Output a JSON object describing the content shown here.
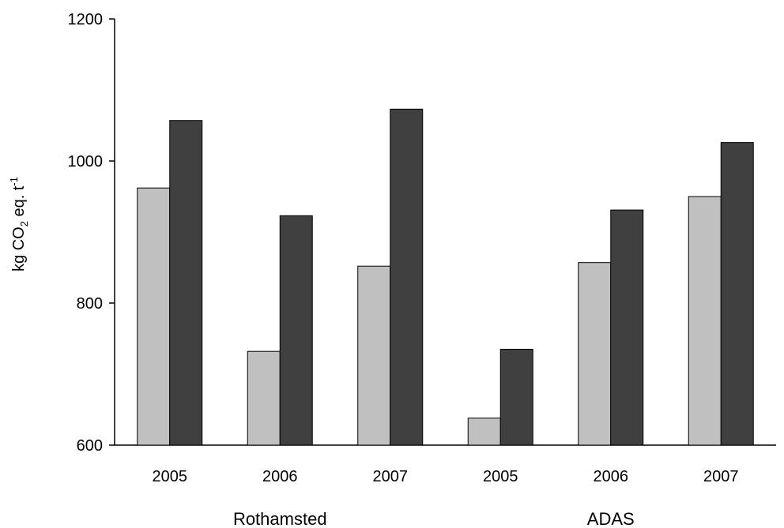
{
  "chart_data": {
    "type": "bar",
    "ylabel": {
      "pre": "kg CO",
      "sub": "2",
      "mid": " eq. t",
      "sup": "-1"
    },
    "ylim": [
      600,
      1200
    ],
    "yticks": [
      600,
      800,
      1000,
      1200
    ],
    "categories": [
      "2005",
      "2006",
      "2007",
      "2005",
      "2006",
      "2007"
    ],
    "groups": [
      {
        "label": "Rothamsted",
        "category_indices": [
          0,
          1,
          2
        ]
      },
      {
        "label": "ADAS",
        "category_indices": [
          3,
          4,
          5
        ]
      }
    ],
    "series": [
      {
        "color": "#c0c0c0",
        "values": [
          962,
          732,
          852,
          638,
          857,
          950
        ]
      },
      {
        "color": "#404040",
        "values": [
          1057,
          923,
          1073,
          735,
          931,
          1026
        ]
      }
    ],
    "grid": false,
    "legend": "none"
  }
}
